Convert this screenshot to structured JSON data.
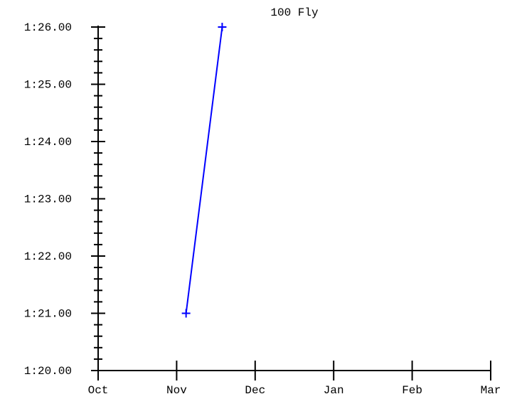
{
  "chart_data": {
    "type": "line",
    "title": "100 Fly",
    "xlabel": "",
    "ylabel": "",
    "x_ticks": [
      "Oct",
      "Nov",
      "Dec",
      "Jan",
      "Feb",
      "Mar"
    ],
    "y_ticks": [
      "1:20.00",
      "1:21.00",
      "1:22.00",
      "1:23.00",
      "1:24.00",
      "1:25.00",
      "1:26.00"
    ],
    "ylim_seconds": [
      80,
      86
    ],
    "y_minor_tick_step_seconds": 0.2,
    "series": [
      {
        "color": "#0000ff",
        "marker": "plus",
        "points": [
          {
            "x": "Nov 4",
            "x_month_offset": 1.12,
            "y": "1:21.00",
            "y_seconds": 81.0
          },
          {
            "x": "Nov 18",
            "x_month_offset": 1.58,
            "y": "1:26.00",
            "y_seconds": 86.0
          }
        ]
      }
    ],
    "grid": false,
    "legend": "none",
    "axis_color": "#000000"
  }
}
